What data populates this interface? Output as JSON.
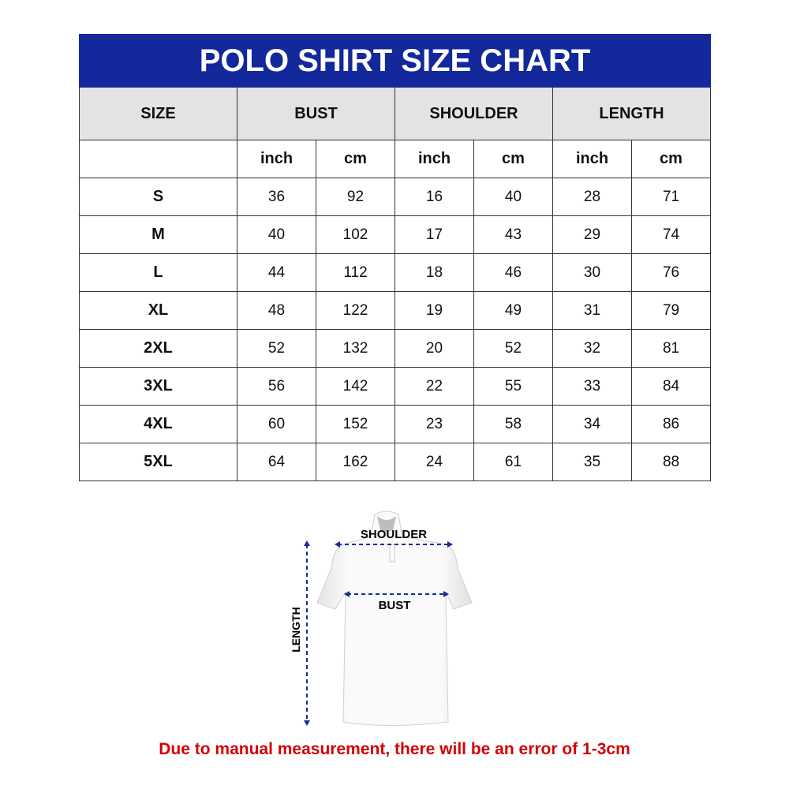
{
  "title": "POLO SHIRT SIZE CHART",
  "headers": {
    "size": "SIZE",
    "bust": "BUST",
    "shoulder": "SHOULDER",
    "length": "LENGTH"
  },
  "units": [
    "inch",
    "cm",
    "inch",
    "cm",
    "inch",
    "cm"
  ],
  "rows": [
    [
      "S",
      "36",
      "92",
      "16",
      "40",
      "28",
      "71"
    ],
    [
      "M",
      "40",
      "102",
      "17",
      "43",
      "29",
      "74"
    ],
    [
      "L",
      "44",
      "112",
      "18",
      "46",
      "30",
      "76"
    ],
    [
      "XL",
      "48",
      "122",
      "19",
      "49",
      "31",
      "79"
    ],
    [
      "2XL",
      "52",
      "132",
      "20",
      "52",
      "32",
      "81"
    ],
    [
      "3XL",
      "56",
      "142",
      "22",
      "55",
      "33",
      "84"
    ],
    [
      "4XL",
      "60",
      "152",
      "23",
      "58",
      "34",
      "86"
    ],
    [
      "5XL",
      "64",
      "162",
      "24",
      "61",
      "35",
      "88"
    ]
  ],
  "diagram": {
    "shoulder": "SHOULDER",
    "bust": "BUST",
    "length": "LENGTH"
  },
  "note": "Due to manual measurement, there will be an error of 1-3cm",
  "colors": {
    "header": "#13289b",
    "arrows": "#1a2a9a",
    "note": "#d40000"
  }
}
